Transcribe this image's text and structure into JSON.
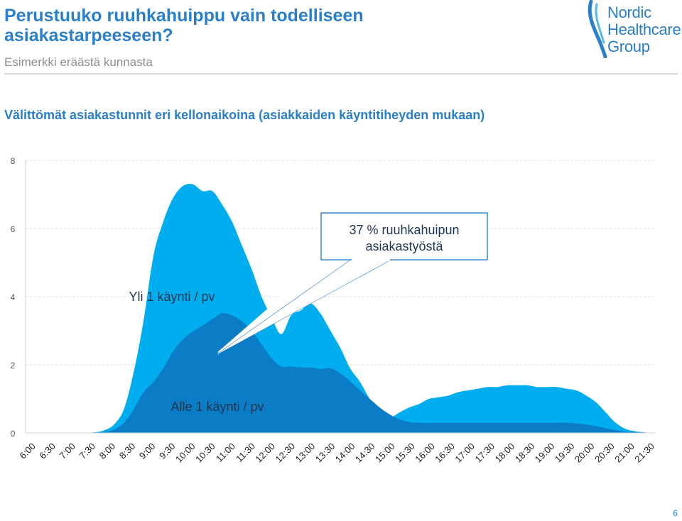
{
  "header": {
    "title": "Perustuuko ruuhkahuippu vain todelliseen asiakastarpeeseen?",
    "subtitle": "Esimerkki eräästä kunnasta",
    "logo_lines": [
      "Nordic",
      "Healthcare",
      "Group"
    ]
  },
  "page_number": "6",
  "colors": {
    "series_over_one": "#00aeef",
    "series_under_one": "#0b7cc6",
    "accent": "#2a7fc8",
    "callout_border": "#2a7fc8"
  },
  "chart_data": {
    "type": "area",
    "title": "Välittömät asiakastunnit eri kellonaikoina (asiakkaiden käyntitiheyden mukaan)",
    "xlabel": "",
    "ylabel": "",
    "ylim": [
      0,
      8
    ],
    "yticks": [
      0,
      2,
      4,
      6,
      8
    ],
    "grid": "horizontal-dashed",
    "stacked": false,
    "x_tick_labels": [
      "6:00",
      "6:30",
      "7:00",
      "7:30",
      "8:00",
      "8:30",
      "9:00",
      "9:30",
      "10:00",
      "10:30",
      "11:00",
      "11:30",
      "12:00",
      "12:30",
      "13:00",
      "13:30",
      "14:00",
      "14:30",
      "15:00",
      "15:30",
      "16:00",
      "16:30",
      "17:00",
      "17:30",
      "18:00",
      "18:30",
      "19:00",
      "19:30",
      "20:00",
      "20:30",
      "21:00",
      "21:30"
    ],
    "x_hours": [
      6.0,
      6.25,
      6.5,
      6.75,
      7.0,
      7.25,
      7.5,
      7.75,
      8.0,
      8.25,
      8.5,
      8.75,
      9.0,
      9.25,
      9.5,
      9.75,
      10.0,
      10.25,
      10.5,
      10.75,
      11.0,
      11.25,
      11.5,
      11.75,
      12.0,
      12.25,
      12.5,
      12.75,
      13.0,
      13.25,
      13.5,
      13.75,
      14.0,
      14.25,
      14.5,
      14.75,
      15.0,
      15.25,
      15.5,
      15.75,
      16.0,
      16.25,
      16.5,
      16.75,
      17.0,
      17.25,
      17.5,
      17.75,
      18.0,
      18.25,
      18.5,
      18.75,
      19.0,
      19.25,
      19.5,
      19.75,
      20.0,
      20.25,
      20.5,
      20.75,
      21.0,
      21.25,
      21.5,
      21.75
    ],
    "series": [
      {
        "name": "Yli 1 käynti / pv",
        "values": [
          0,
          0,
          0,
          0,
          0,
          0,
          0,
          0.02,
          0.08,
          0.25,
          0.7,
          1.8,
          3.3,
          5.2,
          6.2,
          6.9,
          7.25,
          7.3,
          7.1,
          7.1,
          6.7,
          6.2,
          5.5,
          4.8,
          4.0,
          3.4,
          2.9,
          3.45,
          3.6,
          3.8,
          3.5,
          3.0,
          2.5,
          1.9,
          1.5,
          1.0,
          0.6,
          0.45,
          0.6,
          0.75,
          0.85,
          1.0,
          1.05,
          1.1,
          1.2,
          1.25,
          1.3,
          1.35,
          1.35,
          1.4,
          1.4,
          1.4,
          1.35,
          1.35,
          1.35,
          1.3,
          1.25,
          1.1,
          0.9,
          0.6,
          0.3,
          0.12,
          0.05,
          0.02
        ]
      },
      {
        "name": "Alle 1 käynti / pv",
        "values": [
          0,
          0,
          0,
          0,
          0,
          0,
          0,
          0,
          0.03,
          0.1,
          0.3,
          0.7,
          1.2,
          1.5,
          1.9,
          2.4,
          2.75,
          2.98,
          3.15,
          3.35,
          3.52,
          3.45,
          3.28,
          3.0,
          2.6,
          2.2,
          1.95,
          1.95,
          1.92,
          1.92,
          1.88,
          1.9,
          1.75,
          1.52,
          1.25,
          1.0,
          0.75,
          0.55,
          0.4,
          0.32,
          0.3,
          0.3,
          0.3,
          0.3,
          0.3,
          0.3,
          0.3,
          0.3,
          0.3,
          0.3,
          0.3,
          0.3,
          0.3,
          0.3,
          0.3,
          0.3,
          0.28,
          0.25,
          0.2,
          0.14,
          0.08,
          0.04,
          0.02,
          0.01
        ]
      }
    ],
    "annotations": [
      {
        "text": "37 % ruuhkahuipun asiakastyöstä",
        "target_hour": 11.0,
        "target_value": 2.3
      }
    ]
  }
}
